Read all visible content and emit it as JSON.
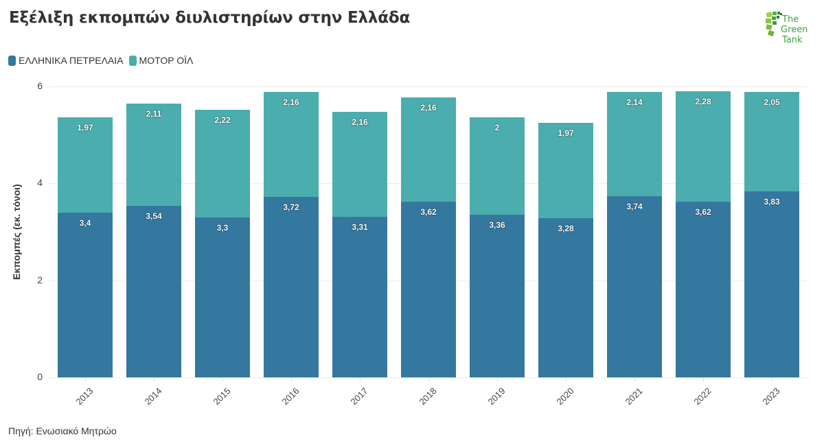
{
  "title": "Εξέλιξη εκπομπών διυλιστηρίων στην Ελλάδα",
  "logo": {
    "text_line1": "The",
    "text_line2": "Green",
    "text_line3": "Tank",
    "icon": "green-tank-logo-icon"
  },
  "legend": [
    {
      "label": "ΕΛΛΗΝΙΚΑ ΠΕΤΡΕΛΑΙΑ",
      "color": "#34789f"
    },
    {
      "label": "ΜΟΤΟΡ ΟΪΛ",
      "color": "#4badad"
    }
  ],
  "source": "Πηγή: Ενωσιακό Μητρώο",
  "chart_data": {
    "type": "bar",
    "stacked": true,
    "title": "Εξέλιξη εκπομπών διυλιστηρίων στην Ελλάδα",
    "xlabel": "",
    "ylabel": "Εκπομπές (εκ. τόνοι)",
    "ylim": [
      0,
      6
    ],
    "yticks": [
      "0",
      "2",
      "4",
      "6"
    ],
    "grid": true,
    "legend_position": "top-left",
    "categories": [
      "2013",
      "2014",
      "2015",
      "2016",
      "2017",
      "2018",
      "2019",
      "2020",
      "2021",
      "2022",
      "2023"
    ],
    "series": [
      {
        "name": "ΕΛΛΗΝΙΚΑ ΠΕΤΡΕΛΑΙΑ",
        "color": "#34789f",
        "values": [
          3.4,
          3.54,
          3.3,
          3.72,
          3.31,
          3.62,
          3.36,
          3.28,
          3.74,
          3.62,
          3.83
        ],
        "labels": [
          "3,4",
          "3,54",
          "3,3",
          "3,72",
          "3,31",
          "3,62",
          "3,36",
          "3,28",
          "3,74",
          "3,62",
          "3,83"
        ]
      },
      {
        "name": "ΜΟΤΟΡ ΟΪΛ",
        "color": "#4badad",
        "values": [
          1.97,
          2.11,
          2.22,
          2.16,
          2.16,
          2.16,
          2.0,
          1.97,
          2.14,
          2.28,
          2.05
        ],
        "labels": [
          "1,97",
          "2,11",
          "2,22",
          "2,16",
          "2,16",
          "2,16",
          "2",
          "1,97",
          "2,14",
          "2,28",
          "2,05"
        ]
      }
    ]
  }
}
